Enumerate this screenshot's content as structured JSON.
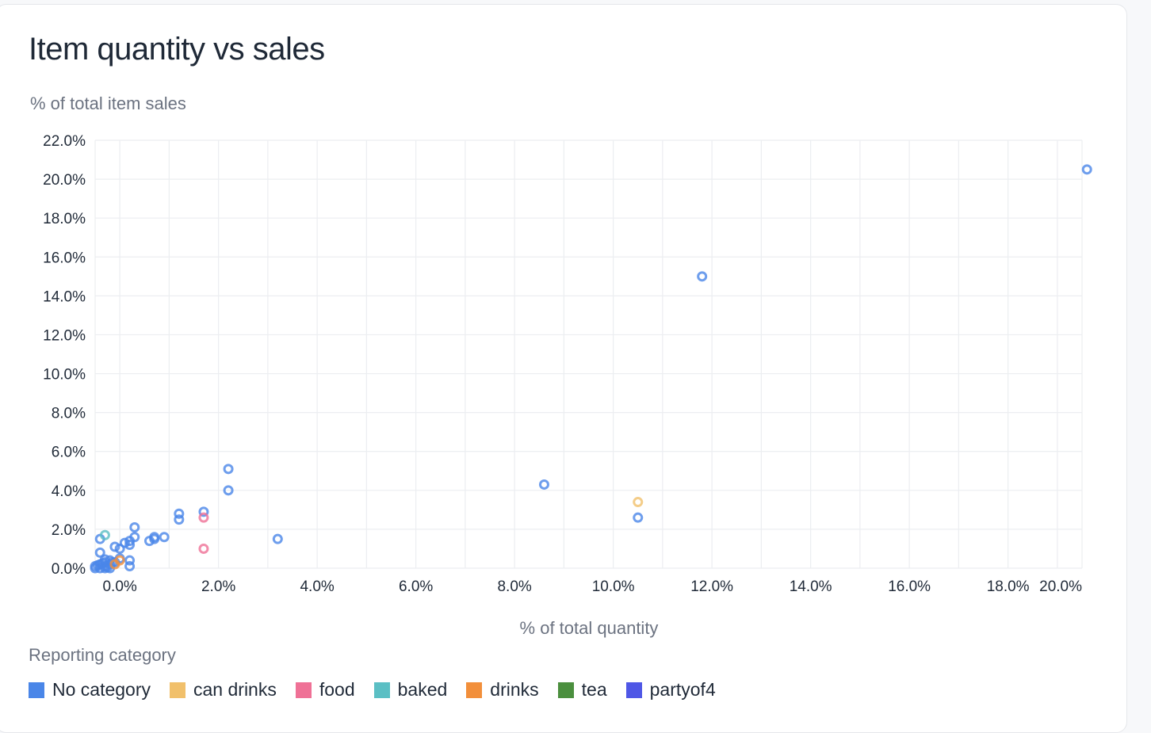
{
  "card": {
    "title": "Item quantity vs sales",
    "y_axis_label": "% of total item sales",
    "x_axis_label": "% of total quantity",
    "legend_title": "Reporting category"
  },
  "legend": [
    {
      "label": "No category",
      "color": "#4a86e8"
    },
    {
      "label": "can drinks",
      "color": "#f1c06b"
    },
    {
      "label": "food",
      "color": "#ef7196"
    },
    {
      "label": "baked",
      "color": "#5bbfc4"
    },
    {
      "label": "drinks",
      "color": "#f28f3b"
    },
    {
      "label": "tea",
      "color": "#4b8f3e"
    },
    {
      "label": "partyof4",
      "color": "#4f57e6"
    }
  ],
  "chart_data": {
    "type": "scatter",
    "title": "Item quantity vs sales",
    "xlabel": "% of total quantity",
    "ylabel": "% of total item sales",
    "xlim": [
      -0.5,
      19.5
    ],
    "ylim": [
      0,
      22
    ],
    "x_ticks": [
      "0.0%",
      "2.0%",
      "4.0%",
      "6.0%",
      "8.0%",
      "10.0%",
      "12.0%",
      "14.0%",
      "16.0%",
      "18.0%",
      "20.0%"
    ],
    "y_ticks": [
      "0.0%",
      "2.0%",
      "4.0%",
      "6.0%",
      "8.0%",
      "10.0%",
      "12.0%",
      "14.0%",
      "16.0%",
      "18.0%",
      "20.0%",
      "22.0%"
    ],
    "grid": true,
    "legend_placement": "bottom",
    "series": [
      {
        "name": "No category",
        "color": "#4a86e8",
        "points": [
          [
            19.6,
            20.5
          ],
          [
            11.8,
            15.0
          ],
          [
            8.6,
            4.3
          ],
          [
            10.5,
            2.6
          ],
          [
            2.2,
            5.1
          ],
          [
            2.2,
            4.0
          ],
          [
            3.2,
            1.5
          ],
          [
            1.7,
            2.9
          ],
          [
            1.2,
            2.8
          ],
          [
            1.2,
            2.5
          ],
          [
            0.9,
            1.6
          ],
          [
            0.7,
            1.6
          ],
          [
            0.6,
            1.4
          ],
          [
            0.7,
            1.5
          ],
          [
            0.3,
            2.1
          ],
          [
            0.2,
            1.4
          ],
          [
            0.3,
            1.6
          ],
          [
            0.1,
            1.3
          ],
          [
            0.2,
            1.2
          ],
          [
            0.0,
            1.0
          ],
          [
            -0.1,
            1.1
          ],
          [
            -0.4,
            1.5
          ],
          [
            -0.4,
            0.8
          ],
          [
            0.2,
            0.4
          ],
          [
            0.2,
            0.1
          ],
          [
            0.0,
            0.5
          ],
          [
            -0.1,
            0.3
          ],
          [
            -0.2,
            0.4
          ],
          [
            -0.3,
            0.3
          ],
          [
            -0.4,
            0.2
          ],
          [
            -0.5,
            0.1
          ],
          [
            -0.4,
            0.0
          ],
          [
            -0.3,
            0.1
          ],
          [
            -0.2,
            0.2
          ],
          [
            -0.3,
            0.0
          ],
          [
            -0.5,
            0.0
          ],
          [
            -0.2,
            0.0
          ],
          [
            -0.35,
            0.25
          ],
          [
            -0.45,
            0.15
          ],
          [
            -0.25,
            0.05
          ],
          [
            -0.15,
            0.3
          ],
          [
            -0.3,
            0.45
          ]
        ]
      },
      {
        "name": "can drinks",
        "color": "#f1c06b",
        "points": [
          [
            10.5,
            3.4
          ]
        ]
      },
      {
        "name": "food",
        "color": "#ef7196",
        "points": [
          [
            1.7,
            2.6
          ],
          [
            1.7,
            1.0
          ]
        ]
      },
      {
        "name": "baked",
        "color": "#5bbfc4",
        "points": [
          [
            -0.3,
            1.7
          ]
        ]
      },
      {
        "name": "drinks",
        "color": "#f28f3b",
        "points": [
          [
            -0.1,
            0.2
          ],
          [
            0.0,
            0.4
          ]
        ]
      },
      {
        "name": "tea",
        "color": "#4b8f3e",
        "points": []
      },
      {
        "name": "partyof4",
        "color": "#4f57e6",
        "points": []
      }
    ]
  }
}
